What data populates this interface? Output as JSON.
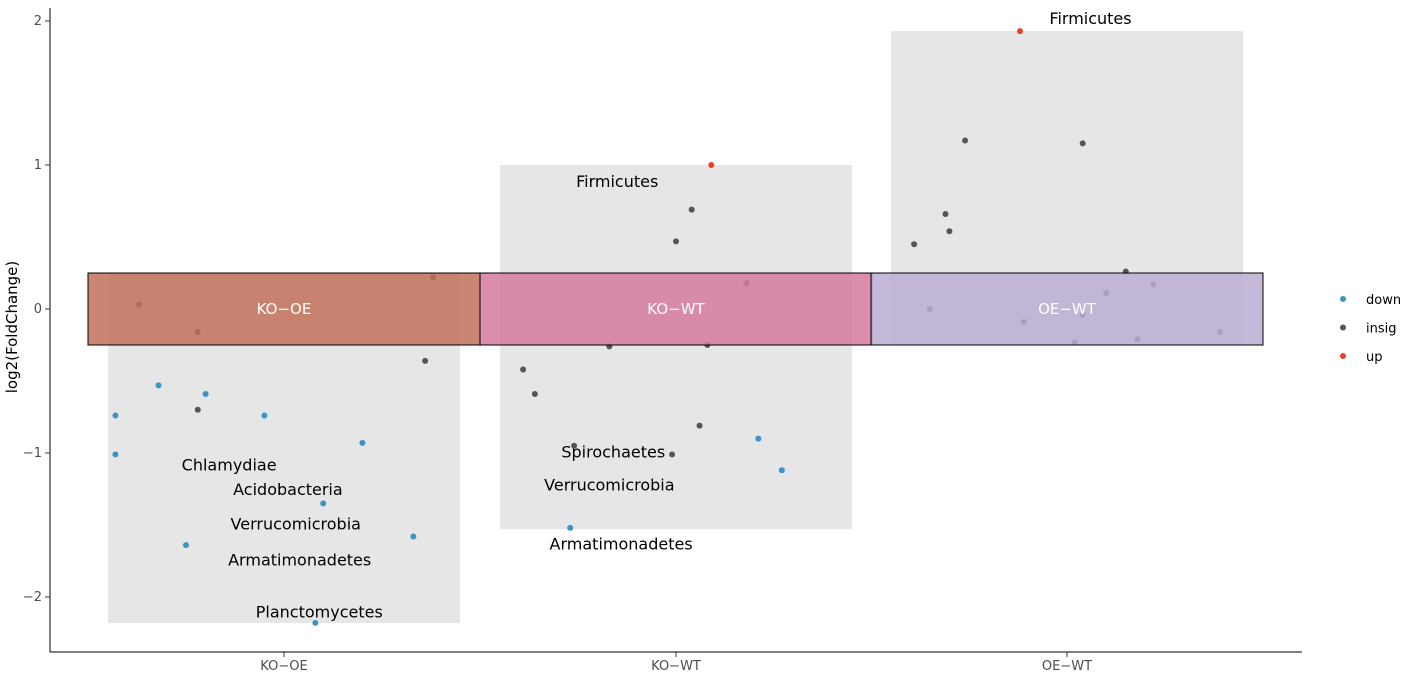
{
  "chart_data": {
    "type": "scatter",
    "xlabel": "",
    "ylabel": "log2(FoldChange)",
    "ylim": [
      -2.25,
      2.1
    ],
    "yticks": [
      2,
      1,
      0,
      -1,
      -2
    ],
    "categories": [
      "KO−OE",
      "KO−WT",
      "OE−WT"
    ],
    "status_colors": {
      "down": "#3a94c6",
      "insig": "#555555",
      "up": "#e8412a"
    },
    "legend": [
      {
        "key": "down",
        "label": "down"
      },
      {
        "key": "insig",
        "label": "insig"
      },
      {
        "key": "up",
        "label": "up"
      }
    ],
    "legend_position": "right",
    "groups": [
      {
        "label": "KO−OE",
        "color": "#c2705a",
        "band_range": [
          -0.25,
          0.25
        ],
        "shade_range": [
          -2.18,
          0.25
        ],
        "points": [
          {
            "x": -0.37,
            "y": 0.03,
            "status": "insig"
          },
          {
            "x": -0.22,
            "y": -0.16,
            "status": "insig"
          },
          {
            "x": 0.38,
            "y": 0.22,
            "status": "insig"
          },
          {
            "x": 0.36,
            "y": -0.36,
            "status": "insig"
          },
          {
            "x": -0.22,
            "y": -0.7,
            "status": "insig"
          },
          {
            "x": -0.32,
            "y": -0.53,
            "status": "down"
          },
          {
            "x": -0.2,
            "y": -0.59,
            "status": "down"
          },
          {
            "x": -0.43,
            "y": -0.74,
            "status": "down"
          },
          {
            "x": -0.05,
            "y": -0.74,
            "status": "down"
          },
          {
            "x": -0.43,
            "y": -1.01,
            "status": "down"
          },
          {
            "x": 0.2,
            "y": -0.93,
            "status": "down"
          },
          {
            "x": 0.1,
            "y": -1.35,
            "status": "down"
          },
          {
            "x": -0.25,
            "y": -1.64,
            "status": "down"
          },
          {
            "x": 0.33,
            "y": -1.58,
            "status": "down"
          },
          {
            "x": 0.08,
            "y": -2.18,
            "status": "down"
          }
        ],
        "annotations": [
          {
            "text": "Chlamydiae",
            "x": -0.14,
            "y": -1.08
          },
          {
            "text": "Acidobacteria",
            "x": 0.01,
            "y": -1.25
          },
          {
            "text": "Verrucomicrobia",
            "x": 0.03,
            "y": -1.49
          },
          {
            "text": "Armatimonadetes",
            "x": 0.04,
            "y": -1.74
          },
          {
            "text": "Planctomycetes",
            "x": 0.09,
            "y": -2.1
          }
        ]
      },
      {
        "label": "KO−WT",
        "color": "#d47a9e",
        "band_range": [
          -0.25,
          0.25
        ],
        "shade_range": [
          -1.53,
          1.0
        ],
        "points": [
          {
            "x": 0.09,
            "y": 1.0,
            "status": "up"
          },
          {
            "x": 0.04,
            "y": 0.69,
            "status": "insig"
          },
          {
            "x": 0.0,
            "y": 0.47,
            "status": "insig"
          },
          {
            "x": 0.18,
            "y": 0.18,
            "status": "insig"
          },
          {
            "x": -0.17,
            "y": -0.26,
            "status": "insig"
          },
          {
            "x": 0.08,
            "y": -0.25,
            "status": "insig"
          },
          {
            "x": -0.39,
            "y": -0.42,
            "status": "insig"
          },
          {
            "x": -0.36,
            "y": -0.59,
            "status": "insig"
          },
          {
            "x": 0.06,
            "y": -0.81,
            "status": "insig"
          },
          {
            "x": -0.26,
            "y": -0.95,
            "status": "insig"
          },
          {
            "x": -0.01,
            "y": -1.01,
            "status": "insig"
          },
          {
            "x": 0.21,
            "y": -0.9,
            "status": "down"
          },
          {
            "x": 0.27,
            "y": -1.12,
            "status": "down"
          },
          {
            "x": -0.27,
            "y": -1.52,
            "status": "down"
          }
        ],
        "annotations": [
          {
            "text": "Firmicutes",
            "x": -0.15,
            "y": 0.89
          },
          {
            "text": "Spirochaetes",
            "x": -0.16,
            "y": -0.99
          },
          {
            "text": "Verrucomicrobia",
            "x": -0.17,
            "y": -1.22
          },
          {
            "text": "Armatimonadetes",
            "x": -0.14,
            "y": -1.63
          }
        ]
      },
      {
        "label": "OE−WT",
        "color": "#bbadd4",
        "band_range": [
          -0.25,
          0.25
        ],
        "shade_range": [
          -0.25,
          1.93
        ],
        "points": [
          {
            "x": -0.12,
            "y": 1.93,
            "status": "up"
          },
          {
            "x": -0.26,
            "y": 1.17,
            "status": "insig"
          },
          {
            "x": 0.04,
            "y": 1.15,
            "status": "insig"
          },
          {
            "x": -0.31,
            "y": 0.66,
            "status": "insig"
          },
          {
            "x": -0.3,
            "y": 0.54,
            "status": "insig"
          },
          {
            "x": -0.39,
            "y": 0.45,
            "status": "insig"
          },
          {
            "x": 0.15,
            "y": 0.26,
            "status": "insig"
          },
          {
            "x": 0.1,
            "y": 0.11,
            "status": "insig"
          },
          {
            "x": 0.22,
            "y": 0.17,
            "status": "insig"
          },
          {
            "x": -0.35,
            "y": 0.0,
            "status": "insig"
          },
          {
            "x": -0.11,
            "y": -0.09,
            "status": "insig"
          },
          {
            "x": 0.04,
            "y": -0.04,
            "status": "insig"
          },
          {
            "x": 0.18,
            "y": -0.21,
            "status": "insig"
          },
          {
            "x": 0.02,
            "y": -0.23,
            "status": "insig"
          },
          {
            "x": 0.39,
            "y": -0.16,
            "status": "insig"
          }
        ],
        "annotations": [
          {
            "text": "Firmicutes",
            "x": 0.06,
            "y": 2.02
          }
        ]
      }
    ]
  }
}
